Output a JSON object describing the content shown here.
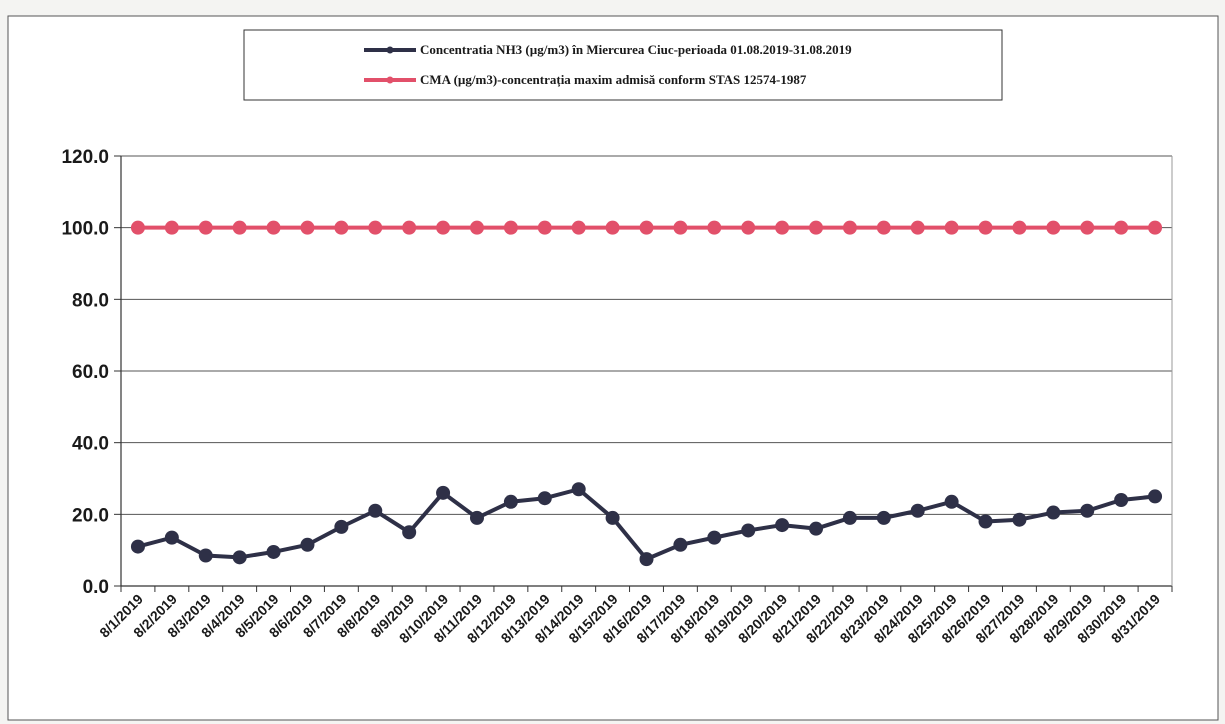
{
  "chart_data": {
    "type": "line",
    "categories": [
      "8/1/2019",
      "8/2/2019",
      "8/3/2019",
      "8/4/2019",
      "8/5/2019",
      "8/6/2019",
      "8/7/2019",
      "8/8/2019",
      "8/9/2019",
      "8/10/2019",
      "8/11/2019",
      "8/12/2019",
      "8/13/2019",
      "8/14/2019",
      "8/15/2019",
      "8/16/2019",
      "8/17/2019",
      "8/18/2019",
      "8/19/2019",
      "8/20/2019",
      "8/21/2019",
      "8/22/2019",
      "8/23/2019",
      "8/24/2019",
      "8/25/2019",
      "8/26/2019",
      "8/27/2019",
      "8/28/2019",
      "8/29/2019",
      "8/30/2019",
      "8/31/2019"
    ],
    "series": [
      {
        "name": "Concentratia NH3 (µg/m3) în Miercurea Ciuc-perioada 01.08.2019-31.08.2019",
        "color": "#2e3047",
        "values": [
          11.0,
          13.5,
          8.5,
          8.0,
          9.5,
          11.5,
          16.5,
          21.0,
          15.0,
          26.0,
          19.0,
          23.5,
          24.5,
          27.0,
          19.0,
          7.5,
          11.5,
          13.5,
          15.5,
          17.0,
          16.0,
          19.0,
          19.0,
          21.0,
          23.5,
          18.0,
          18.5,
          20.5,
          21.0,
          24.0,
          25.0
        ]
      },
      {
        "name": "CMA (µg/m3)-concentrația maxim admisă conform STAS 12574-1987",
        "color": "#e2506a",
        "values": [
          100,
          100,
          100,
          100,
          100,
          100,
          100,
          100,
          100,
          100,
          100,
          100,
          100,
          100,
          100,
          100,
          100,
          100,
          100,
          100,
          100,
          100,
          100,
          100,
          100,
          100,
          100,
          100,
          100,
          100,
          100
        ]
      }
    ],
    "yticks": [
      "0.0",
      "20.0",
      "40.0",
      "60.0",
      "80.0",
      "100.0",
      "120.0"
    ],
    "ylim": [
      0,
      120
    ],
    "grid": true,
    "legend_position": "top"
  }
}
